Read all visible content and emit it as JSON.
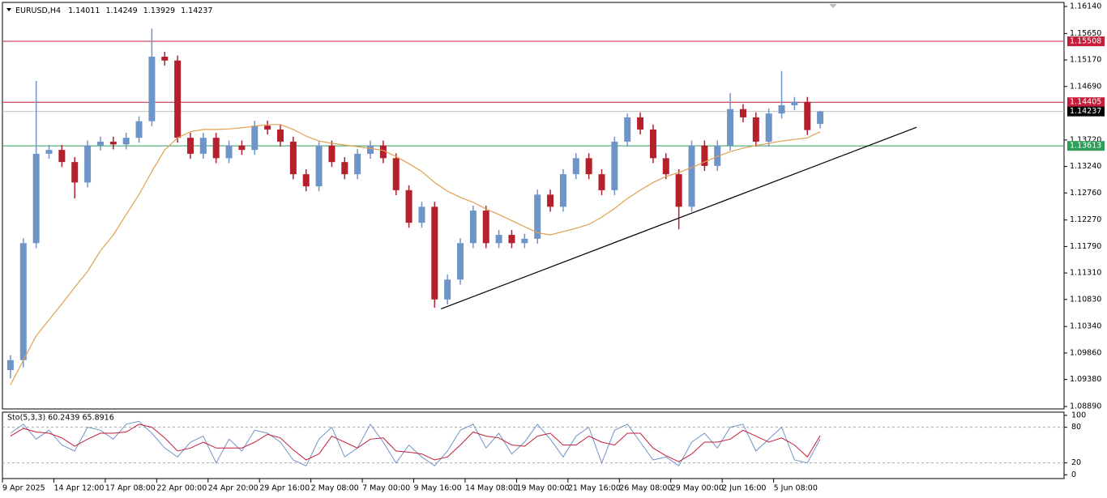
{
  "chart_data": {
    "type": "candlestick",
    "symbol": "EURUSD,H4",
    "indicator_label": "Sto(5,3,3) 60.2439 65.8916",
    "categories": [
      "9 Apr 2025",
      null,
      null,
      null,
      "14 Apr 12:00",
      null,
      null,
      null,
      "17 Apr 08:00",
      null,
      null,
      null,
      "22 Apr 00:00",
      null,
      null,
      null,
      "24 Apr 20:00",
      null,
      null,
      null,
      "29 Apr 16:00",
      null,
      null,
      null,
      "2 May 08:00",
      null,
      null,
      null,
      "7 May 00:00",
      null,
      null,
      null,
      "9 May 16:00",
      null,
      null,
      null,
      "14 May 08:00",
      null,
      null,
      null,
      "19 May 00:00",
      null,
      null,
      null,
      "21 May 16:00",
      null,
      null,
      null,
      "26 May 08:00",
      null,
      null,
      null,
      "29 May 00:00",
      null,
      null,
      null,
      "2 Jun 16:00",
      null,
      null,
      null,
      "5 Jun 08:00",
      null,
      null,
      null
    ],
    "ohlc": {
      "up_color": "#6f94c8",
      "down_color": "#b4202c",
      "open": [
        1.0955,
        1.0973,
        1.1185,
        1.1347,
        1.1354,
        1.1332,
        1.1295,
        1.1362,
        1.1369,
        1.1364,
        1.1376,
        1.1406,
        1.1523,
        1.1516,
        1.1376,
        1.1347,
        1.1376,
        1.1339,
        1.1362,
        1.1354,
        1.1398,
        1.1391,
        1.1369,
        1.131,
        1.1288,
        1.1362,
        1.1332,
        1.131,
        1.1347,
        1.1362,
        1.1339,
        1.1281,
        1.1222,
        1.1251,
        1.1083,
        1.1119,
        1.1185,
        1.1244,
        1.1185,
        1.12,
        1.1185,
        1.1193,
        1.1273,
        1.1251,
        1.131,
        1.1339,
        1.131,
        1.1281,
        1.1369,
        1.1413,
        1.1391,
        1.1339,
        1.131,
        1.1251,
        1.1362,
        1.1325,
        1.1362,
        1.1428,
        1.1413,
        1.1369,
        1.142,
        1.1435,
        1.1441,
        1.14011
      ],
      "high": [
        1.0982,
        1.1194,
        1.1479,
        1.1363,
        1.1363,
        1.1341,
        1.1371,
        1.1378,
        1.1378,
        1.1385,
        1.1415,
        1.1574,
        1.1532,
        1.1525,
        1.1385,
        1.1385,
        1.1385,
        1.1371,
        1.1371,
        1.1407,
        1.1407,
        1.14,
        1.1378,
        1.1319,
        1.1371,
        1.1371,
        1.1341,
        1.1356,
        1.1371,
        1.1371,
        1.1348,
        1.129,
        1.126,
        1.126,
        1.1128,
        1.1194,
        1.1253,
        1.1253,
        1.1209,
        1.1209,
        1.1202,
        1.1282,
        1.1282,
        1.1319,
        1.1348,
        1.1348,
        1.1319,
        1.1378,
        1.142,
        1.1422,
        1.14,
        1.1348,
        1.1319,
        1.1371,
        1.1371,
        1.1371,
        1.1457,
        1.1437,
        1.1422,
        1.1429,
        1.1497,
        1.145,
        1.145,
        1.14249
      ],
      "low": [
        1.094,
        1.096,
        1.1176,
        1.1338,
        1.1323,
        1.1266,
        1.1286,
        1.1353,
        1.1355,
        1.1355,
        1.1367,
        1.1397,
        1.1507,
        1.1367,
        1.1338,
        1.1338,
        1.133,
        1.133,
        1.1345,
        1.1345,
        1.1382,
        1.136,
        1.1301,
        1.1279,
        1.1279,
        1.1323,
        1.1301,
        1.1301,
        1.1338,
        1.133,
        1.1272,
        1.1213,
        1.1213,
        1.1068,
        1.1074,
        1.111,
        1.1176,
        1.1176,
        1.1176,
        1.1176,
        1.1176,
        1.1184,
        1.1242,
        1.1242,
        1.1301,
        1.1301,
        1.1272,
        1.1272,
        1.136,
        1.1382,
        1.133,
        1.1301,
        1.121,
        1.1242,
        1.1316,
        1.1316,
        1.1353,
        1.1404,
        1.136,
        1.136,
        1.1411,
        1.1426,
        1.1381,
        1.13929
      ],
      "close": [
        1.0973,
        1.1185,
        1.1347,
        1.1354,
        1.1332,
        1.1295,
        1.1362,
        1.1369,
        1.1364,
        1.1376,
        1.1406,
        1.1523,
        1.1516,
        1.1376,
        1.1347,
        1.1376,
        1.1339,
        1.1362,
        1.1354,
        1.1398,
        1.1391,
        1.1369,
        1.131,
        1.1288,
        1.1362,
        1.1332,
        1.131,
        1.1347,
        1.1362,
        1.1339,
        1.1281,
        1.1222,
        1.1251,
        1.1083,
        1.1119,
        1.1185,
        1.1244,
        1.1185,
        1.12,
        1.1185,
        1.1193,
        1.1273,
        1.1251,
        1.131,
        1.1339,
        1.131,
        1.1281,
        1.1369,
        1.1413,
        1.1391,
        1.1339,
        1.131,
        1.1251,
        1.1362,
        1.1325,
        1.1362,
        1.1428,
        1.1413,
        1.1369,
        1.142,
        1.1435,
        1.1441,
        1.139,
        1.14237
      ]
    },
    "ma": {
      "color": "#e0a050",
      "values": [
        1.0928,
        1.0973,
        1.1017,
        1.1046,
        1.1075,
        1.1105,
        1.1134,
        1.1171,
        1.12,
        1.1237,
        1.1273,
        1.1315,
        1.1354,
        1.1376,
        1.1387,
        1.1391,
        1.1391,
        1.1392,
        1.1394,
        1.1397,
        1.14,
        1.14,
        1.1391,
        1.1379,
        1.137,
        1.1366,
        1.1363,
        1.136,
        1.1357,
        1.1353,
        1.1342,
        1.1329,
        1.1315,
        1.1295,
        1.1279,
        1.1268,
        1.1259,
        1.1247,
        1.1237,
        1.1226,
        1.1215,
        1.1204,
        1.12,
        1.1206,
        1.1212,
        1.1219,
        1.1232,
        1.1248,
        1.1266,
        1.1281,
        1.1295,
        1.1306,
        1.1313,
        1.1322,
        1.1332,
        1.1342,
        1.1351,
        1.1357,
        1.1362,
        1.1366,
        1.137,
        1.1373,
        1.1376,
        1.1387
      ]
    },
    "ylim": [
      1.08846,
      1.16213
    ],
    "yticks": [
      {
        "value": 1.1614,
        "label": "1.16140"
      },
      {
        "value": 1.1565,
        "label": "1.15650"
      },
      {
        "value": 1.1517,
        "label": "1.15170"
      },
      {
        "value": 1.1469,
        "label": "1.14690"
      },
      {
        "value": 1.1372,
        "label": "1.13720"
      },
      {
        "value": 1.1324,
        "label": "1.13240"
      },
      {
        "value": 1.1276,
        "label": "1.12760"
      },
      {
        "value": 1.1227,
        "label": "1.12270"
      },
      {
        "value": 1.1179,
        "label": "1.11790"
      },
      {
        "value": 1.1131,
        "label": "1.11310"
      },
      {
        "value": 1.1083,
        "label": "1.10830"
      },
      {
        "value": 1.1034,
        "label": "1.10340"
      },
      {
        "value": 1.0986,
        "label": "1.09860"
      },
      {
        "value": 1.0938,
        "label": "1.09380"
      },
      {
        "value": 1.0889,
        "label": "1.08890"
      }
    ],
    "levels": [
      {
        "value": 1.15508,
        "color": "#c41e3a"
      },
      {
        "value": 1.14405,
        "color": "#c41e3a"
      },
      {
        "value": 1.13613,
        "color": "#2e9e5a"
      }
    ],
    "current_color": "#000000",
    "trendline": {
      "x": [
        33.5,
        70.5
      ],
      "y": [
        1.1066,
        1.1395
      ],
      "color": "#000000"
    },
    "stochastic": {
      "ylim": [
        -5,
        104
      ],
      "yticks": [
        100,
        80,
        20,
        0
      ],
      "levels": [
        80,
        20
      ],
      "series": [
        {
          "color": "#6f94c8",
          "values": [
            70,
            85,
            60,
            75,
            50,
            40,
            80,
            75,
            60,
            85,
            90,
            70,
            45,
            30,
            55,
            65,
            20,
            60,
            40,
            75,
            70,
            55,
            25,
            15,
            60,
            80,
            30,
            45,
            85,
            55,
            20,
            50,
            30,
            15,
            40,
            75,
            85,
            45,
            70,
            35,
            55,
            85,
            60,
            30,
            65,
            80,
            20,
            75,
            85,
            55,
            25,
            30,
            15,
            55,
            70,
            45,
            80,
            85,
            40,
            60,
            80,
            25,
            20,
            60.2439
          ]
        },
        {
          "color": "#c41e3a",
          "values": [
            65,
            78,
            72,
            70,
            62,
            48,
            60,
            70,
            70,
            72,
            85,
            80,
            62,
            40,
            45,
            55,
            45,
            45,
            45,
            55,
            68,
            62,
            42,
            25,
            35,
            65,
            55,
            45,
            60,
            62,
            40,
            38,
            35,
            25,
            30,
            50,
            72,
            65,
            62,
            50,
            48,
            65,
            70,
            50,
            50,
            65,
            55,
            50,
            70,
            70,
            45,
            32,
            22,
            35,
            55,
            55,
            60,
            75,
            65,
            55,
            62,
            50,
            30,
            65.8916
          ]
        }
      ]
    }
  }
}
